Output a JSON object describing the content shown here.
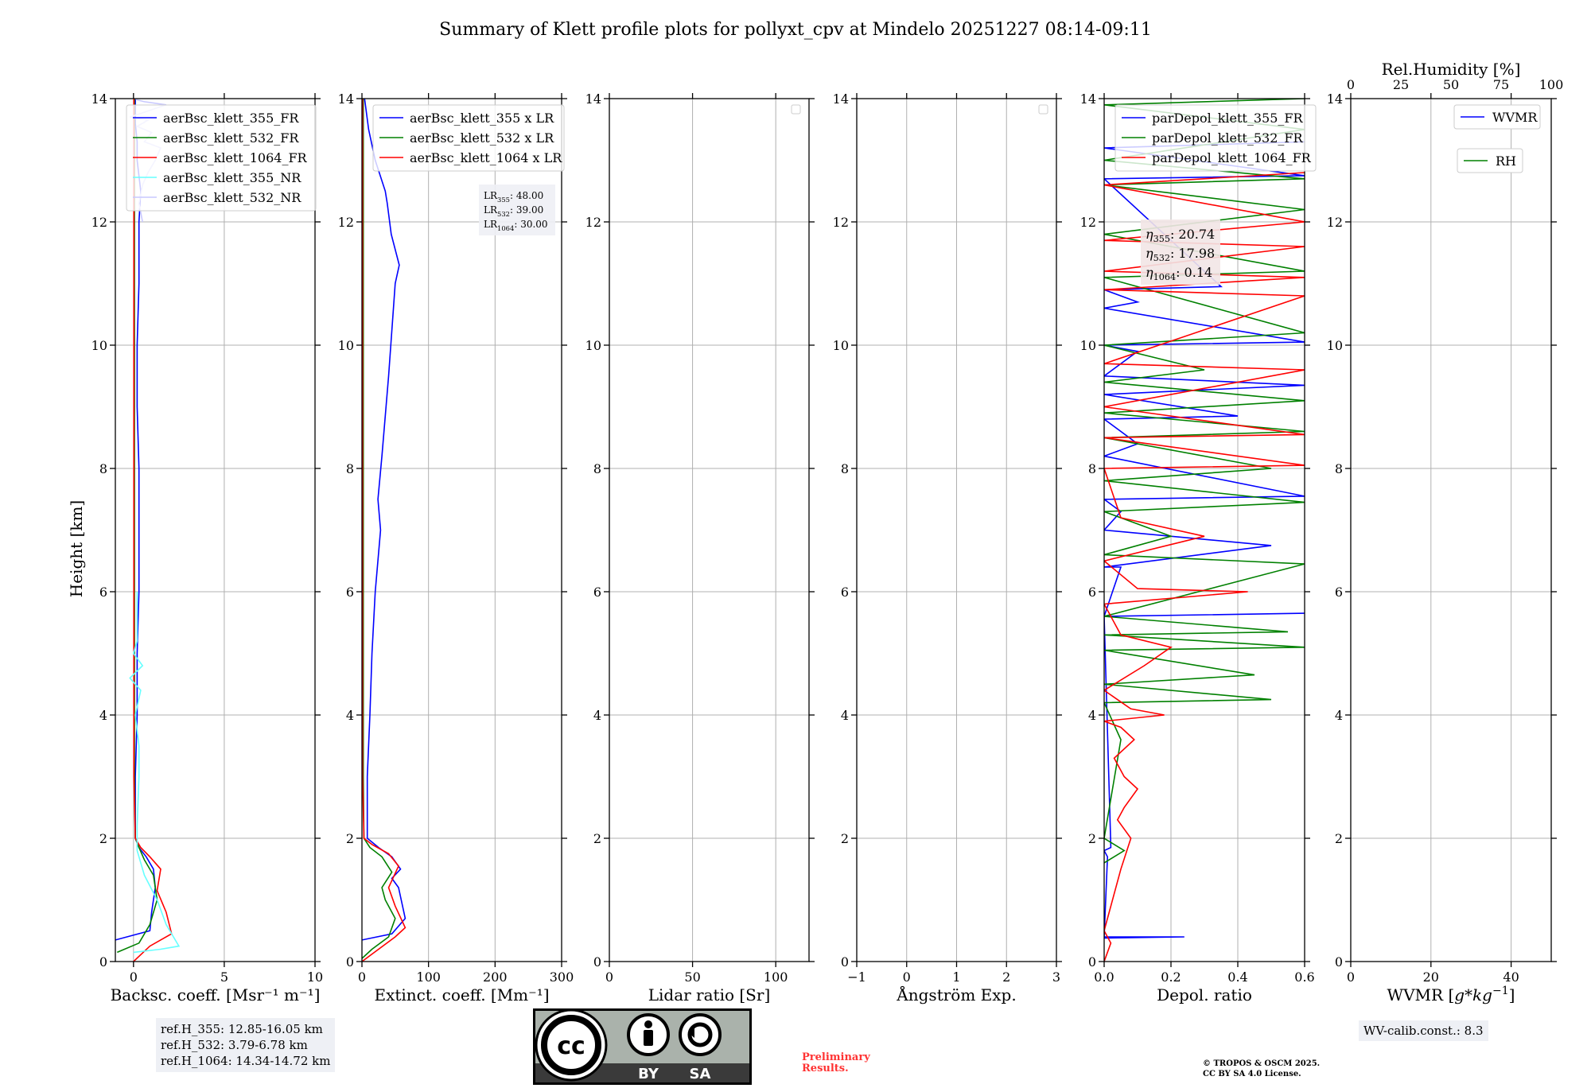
{
  "title": "Summary of Klett profile plots for pollyxt_cpv at Mindelo 20251227 08:14-09:11",
  "colors": {
    "blue": "#0000ff",
    "green": "#008000",
    "red": "#ff0000",
    "cyan": "#66ffff",
    "lightblue": "#c8c8ff",
    "lavender": "#d2d2f0",
    "grid": "#b0b0b0"
  },
  "y_axis": {
    "label": "Height [km]",
    "ylim": [
      0,
      14
    ],
    "ticks": [
      0,
      2,
      4,
      6,
      8,
      10,
      12,
      14
    ],
    "tick_labels": [
      "0",
      "2",
      "4",
      "6",
      "8",
      "10",
      "12",
      "14"
    ]
  },
  "footer": {
    "refh": [
      "ref.H_355: 12.85-16.05 km",
      "ref.H_532: 3.79-6.78 km",
      "ref.H_1064: 14.34-14.72 km"
    ],
    "wv_calib": "WV-calib.const.: 8.3",
    "preliminary": [
      "Preliminary",
      "Results."
    ],
    "copyright": [
      "© TROPOS & OSCM 2025.",
      "CC BY SA 4.0 License."
    ],
    "cc_badge": {
      "by": "BY",
      "sa": "SA"
    }
  },
  "chart_data": [
    {
      "id": "backscatter",
      "type": "line",
      "title": "",
      "xlabel": "Backsc. coeff. [Msr⁻¹ m⁻¹]",
      "ylabel": "Height [km]",
      "xlim": [
        -1,
        10
      ],
      "ylim": [
        0,
        14
      ],
      "xticks": [
        0,
        5,
        10
      ],
      "xtick_labels": [
        "0",
        "5",
        "10"
      ],
      "legend": {
        "position": "top-left",
        "entries": [
          {
            "label": "aerBsc_klett_355_FR",
            "color": "#0000ff"
          },
          {
            "label": "aerBsc_klett_532_FR",
            "color": "#008000"
          },
          {
            "label": "aerBsc_klett_1064_FR",
            "color": "#ff0000"
          },
          {
            "label": "aerBsc_klett_355_NR",
            "color": "#66ffff"
          },
          {
            "label": "aerBsc_klett_532_NR",
            "color": "#c8c8ff"
          }
        ]
      },
      "series": [
        {
          "name": "aerBsc_klett_355_FR",
          "color": "#0000ff",
          "x": [
            -1.0,
            0.9,
            1.0,
            1.2,
            1.1,
            0.7,
            0.3,
            0.1,
            0.1,
            0.2,
            0.2,
            0.3,
            0.3,
            0.3,
            0.2,
            0.2,
            0.3,
            0.3,
            0.4,
            0.2,
            0.2,
            0.1,
            0.1,
            0.1
          ],
          "y": [
            0.35,
            0.5,
            0.8,
            1.2,
            1.5,
            1.7,
            1.85,
            2.0,
            3.0,
            4.0,
            5.0,
            6.0,
            7.0,
            8.0,
            9.0,
            10.0,
            11.0,
            12.0,
            12.5,
            13.0,
            13.3,
            13.6,
            13.8,
            14.0
          ]
        },
        {
          "name": "aerBsc_klett_532_FR",
          "color": "#008000",
          "x": [
            -0.9,
            0.3,
            0.9,
            1.3,
            1.1,
            0.6,
            0.3,
            0.1,
            0.05,
            0.05,
            0.05,
            0.05,
            0.05,
            0.05,
            0.05,
            0.05,
            0.05,
            0.05,
            0.05,
            0.05
          ],
          "y": [
            0.15,
            0.3,
            0.6,
            1.0,
            1.4,
            1.65,
            1.85,
            2.0,
            3.0,
            4.0,
            5.0,
            6.0,
            7.0,
            8.0,
            9.0,
            10.0,
            11.0,
            12.0,
            13.0,
            14.0
          ]
        },
        {
          "name": "aerBsc_klett_1064_FR",
          "color": "#ff0000",
          "x": [
            0.0,
            0.9,
            2.1,
            1.8,
            1.3,
            1.5,
            0.9,
            0.4,
            0.1,
            0.02,
            0.02,
            0.02,
            0.02,
            0.02,
            0.02,
            0.02,
            0.02,
            0.02,
            0.02,
            0.02
          ],
          "y": [
            0.0,
            0.25,
            0.45,
            0.8,
            1.15,
            1.5,
            1.7,
            1.85,
            2.0,
            3.0,
            4.0,
            5.0,
            6.0,
            7.0,
            8.0,
            9.0,
            10.0,
            11.0,
            12.0,
            14.0
          ]
        },
        {
          "name": "aerBsc_klett_355_NR",
          "color": "#66ffff",
          "x": [
            0.0,
            1.5,
            2.5,
            1.8,
            1.3,
            0.6,
            0.2,
            0.2,
            0.3,
            0.3,
            0.1,
            0.4,
            -0.2,
            0.5,
            0.0,
            0.2,
            0.2
          ],
          "y": [
            0.15,
            0.2,
            0.25,
            0.6,
            1.0,
            1.4,
            1.8,
            2.2,
            3.0,
            3.5,
            4.0,
            4.4,
            4.6,
            4.8,
            5.0,
            5.2,
            6.0
          ]
        },
        {
          "name": "aerBsc_klett_532_NR",
          "color": "#c8c8ff",
          "x": [
            0.5,
            0.3,
            0.5,
            0.8,
            1.2,
            1.5,
            0.6,
            1.0,
            0.2,
            0.8,
            -0.2,
            0.8,
            1.8,
            0.6,
            0.2,
            0.1
          ],
          "y": [
            12.0,
            12.3,
            12.6,
            12.8,
            13.0,
            13.2,
            13.3,
            13.45,
            13.55,
            13.65,
            13.7,
            13.8,
            13.9,
            13.95,
            13.98,
            14.0
          ]
        }
      ]
    },
    {
      "id": "extinction",
      "type": "line",
      "title": "",
      "xlabel": "Extinct. coeff. [Mm⁻¹]",
      "xlim": [
        0,
        300
      ],
      "ylim": [
        0,
        14
      ],
      "xticks": [
        0,
        100,
        200,
        300
      ],
      "xtick_labels": [
        "0",
        "100",
        "200",
        "300"
      ],
      "legend": {
        "position": "top-left",
        "entries": [
          {
            "label": "aerBsc_klett_355 x LR",
            "color": "#0000ff"
          },
          {
            "label": "aerBsc_klett_532 x LR",
            "color": "#008000"
          },
          {
            "label": "aerBsc_klett_1064 x LR",
            "color": "#ff0000"
          }
        ]
      },
      "annotation": {
        "lines": [
          {
            "prefix": "LR",
            "sub": "355",
            "value": ": 48.00"
          },
          {
            "prefix": "LR",
            "sub": "532",
            "value": ": 39.00"
          },
          {
            "prefix": "LR",
            "sub": "1064",
            "value": ": 30.00"
          }
        ]
      },
      "series": [
        {
          "name": "aerBsc_klett_355 x LR",
          "color": "#0000ff",
          "x": [
            0,
            45,
            65,
            55,
            45,
            58,
            45,
            25,
            8,
            8,
            12,
            15,
            20,
            28,
            24,
            30,
            40,
            50,
            56,
            44,
            38,
            35,
            20,
            10,
            4
          ],
          "y": [
            0.35,
            0.45,
            0.7,
            1.2,
            1.35,
            1.5,
            1.7,
            1.85,
            2.0,
            3.0,
            4.0,
            5.0,
            6.0,
            7.0,
            7.5,
            8.2,
            9.5,
            11.0,
            11.3,
            11.8,
            12.3,
            12.5,
            13.0,
            13.5,
            14.0
          ]
        },
        {
          "name": "aerBsc_klett_532 x LR",
          "color": "#008000",
          "x": [
            0,
            15,
            40,
            50,
            35,
            30,
            45,
            30,
            12,
            3,
            2,
            2,
            2,
            2,
            2,
            2,
            2,
            2
          ],
          "y": [
            0.05,
            0.2,
            0.4,
            0.7,
            1.0,
            1.2,
            1.45,
            1.7,
            1.85,
            2.0,
            3.0,
            4.0,
            6.0,
            8.0,
            10.0,
            12.0,
            13.0,
            14.0
          ]
        },
        {
          "name": "aerBsc_klett_1064 x LR",
          "color": "#ff0000",
          "x": [
            0,
            25,
            50,
            65,
            50,
            40,
            55,
            40,
            15,
            3,
            1,
            1,
            1,
            1,
            1,
            1,
            1
          ],
          "y": [
            0.0,
            0.2,
            0.4,
            0.55,
            0.9,
            1.2,
            1.55,
            1.75,
            1.9,
            2.0,
            3.0,
            4.0,
            6.0,
            8.0,
            10.0,
            12.0,
            14.0
          ]
        }
      ]
    },
    {
      "id": "lidar_ratio",
      "type": "line",
      "title": "",
      "xlabel": "Lidar ratio [Sr]",
      "xlim": [
        0,
        120
      ],
      "ylim": [
        0,
        14
      ],
      "xticks": [
        0,
        50,
        100
      ],
      "xtick_labels": [
        "0",
        "50",
        "100"
      ],
      "legend": {
        "position": "top-right",
        "entries": []
      },
      "series": []
    },
    {
      "id": "angstrom",
      "type": "line",
      "title": "",
      "xlabel": "Ångström Exp.",
      "xlim": [
        -1,
        3
      ],
      "ylim": [
        0,
        14
      ],
      "xticks": [
        -1,
        0,
        1,
        2,
        3
      ],
      "xtick_labels": [
        "−1",
        "0",
        "1",
        "2",
        "3"
      ],
      "legend": {
        "position": "top-right",
        "entries": []
      },
      "series": []
    },
    {
      "id": "depol",
      "type": "line",
      "title": "",
      "xlabel": "Depol. ratio",
      "xlim": [
        0,
        0.6
      ],
      "ylim": [
        0,
        14
      ],
      "xticks": [
        0,
        0.2,
        0.4,
        0.6
      ],
      "xtick_labels": [
        "0.0",
        "0.2",
        "0.4",
        "0.6"
      ],
      "legend": {
        "position": "top-left",
        "entries": [
          {
            "label": "parDepol_klett_355_FR",
            "color": "#0000ff"
          },
          {
            "label": "parDepol_klett_532_FR",
            "color": "#008000"
          },
          {
            "label": "parDepol_klett_1064_FR",
            "color": "#ff0000"
          }
        ]
      },
      "annotation": {
        "lines": [
          {
            "prefix": "η",
            "sub": "355",
            "value": ": 20.74"
          },
          {
            "prefix": "η",
            "sub": "532",
            "value": ": 17.98"
          },
          {
            "prefix": "η",
            "sub": "1064",
            "value": ": 0.14"
          }
        ]
      },
      "series": [
        {
          "name": "parDepol_klett_355_FR",
          "color": "#0000ff",
          "x": [
            0,
            0.24,
            0.0,
            0.01,
            0.0,
            0.02,
            0.0,
            0.6,
            0.0,
            0.05,
            0.0,
            0.5,
            0.0,
            0.05,
            0.0,
            0.6,
            0.0,
            0.1,
            0.0,
            0.4,
            0.0,
            0.6,
            0.0,
            0.1,
            0.0,
            0.6,
            0.0,
            0.1,
            0.0,
            0.35,
            0.0,
            0.6,
            0.0,
            0.6
          ],
          "y": [
            0.38,
            0.4,
            0.4,
            1.7,
            1.8,
            1.85,
            5.6,
            5.65,
            5.6,
            6.4,
            6.4,
            6.75,
            7.0,
            7.3,
            7.5,
            7.55,
            8.2,
            8.4,
            8.8,
            8.85,
            9.2,
            9.35,
            9.5,
            9.9,
            10.0,
            10.05,
            10.6,
            10.7,
            10.9,
            10.95,
            12.7,
            12.75,
            13.2,
            13.3
          ]
        },
        {
          "name": "parDepol_klett_532_FR",
          "color": "#008000",
          "x": [
            0,
            0.06,
            0.0,
            0.05,
            0.0,
            0.5,
            0.0,
            0.45,
            0.0,
            0.6,
            0.0,
            0.55,
            0.0,
            0.6,
            0.0,
            0.2,
            0.0,
            0.6,
            0.0,
            0.5,
            0.0,
            0.6,
            0.0,
            0.6,
            0.0,
            0.3,
            0.0,
            0.6,
            0.0,
            0.6,
            0.0,
            0.6,
            0.0,
            0.6,
            0.0,
            0.6,
            0.0,
            0.6
          ],
          "y": [
            1.6,
            1.8,
            2.0,
            3.6,
            4.2,
            4.25,
            4.5,
            4.65,
            5.05,
            5.1,
            5.3,
            5.35,
            5.6,
            6.45,
            6.6,
            6.9,
            7.3,
            7.45,
            7.8,
            8.0,
            8.5,
            8.6,
            8.9,
            9.1,
            9.4,
            9.6,
            10.0,
            10.2,
            11.1,
            11.2,
            11.8,
            12.2,
            12.6,
            12.7,
            13.0,
            13.5,
            13.9,
            14.0
          ]
        },
        {
          "name": "parDepol_klett_1064_FR",
          "color": "#ff0000",
          "x": [
            0,
            0.02,
            0.0,
            0.05,
            0.08,
            0.04,
            0.06,
            0.1,
            0.06,
            0.03,
            0.09,
            0.05,
            0.0,
            0.18,
            0.08,
            0.0,
            0.12,
            0.2,
            0.05,
            0.0,
            0.43,
            0.1,
            0.0,
            0.3,
            0.05,
            0.0,
            0.6,
            0.0,
            0.6,
            0.0,
            0.6,
            0.0,
            0.6,
            0.0,
            0.6,
            0.0,
            0.6,
            0.0,
            0.6,
            0.0,
            0.6
          ],
          "y": [
            0.0,
            0.3,
            0.5,
            1.5,
            2.0,
            2.3,
            2.5,
            2.8,
            3.0,
            3.3,
            3.6,
            3.8,
            3.9,
            4.0,
            4.1,
            4.4,
            4.8,
            5.1,
            5.3,
            5.8,
            6.0,
            6.05,
            6.5,
            6.9,
            7.2,
            8.0,
            8.05,
            8.5,
            8.55,
            9.0,
            9.6,
            9.7,
            10.8,
            10.9,
            11.1,
            11.2,
            11.6,
            11.7,
            12.0,
            12.6,
            12.8
          ]
        }
      ]
    },
    {
      "id": "wvmr",
      "type": "line",
      "title": "",
      "xlabel_prefix": "WVMR [",
      "xlabel_math": "g*kg",
      "xlabel_sup": "−1",
      "xlabel_suffix": "]",
      "xlim": [
        0,
        50
      ],
      "ylim": [
        0,
        14
      ],
      "xticks": [
        0,
        20,
        40
      ],
      "xtick_labels": [
        "0",
        "20",
        "40"
      ],
      "top_axis": {
        "label": "Rel.Humidity [%]",
        "xlim": [
          0,
          100
        ],
        "ticks": [
          0,
          25,
          50,
          75,
          100
        ],
        "tick_labels": [
          "0",
          "25",
          "50",
          "75",
          "100"
        ]
      },
      "legend": {
        "position": "top-right",
        "entries": [
          {
            "label": "WVMR",
            "color": "#0000ff"
          },
          {
            "label": "RH",
            "color": "#008000"
          }
        ]
      },
      "series": []
    }
  ]
}
